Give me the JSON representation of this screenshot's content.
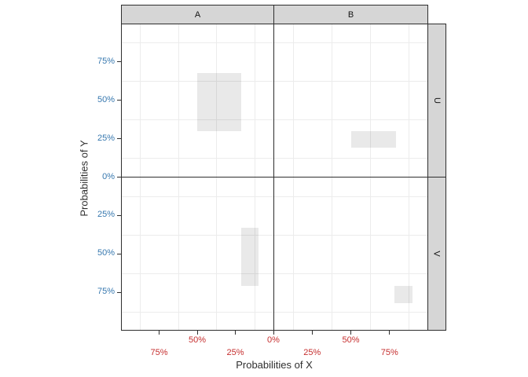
{
  "figure": {
    "facet_columns": [
      "A",
      "B"
    ],
    "facet_rows": [
      "U",
      "V"
    ],
    "x_axis_title": "Probabilities of X",
    "y_axis_title": "Probabilities of Y"
  },
  "style": {
    "x_tick_label_color": "#c62f2f",
    "y_tick_label_color": "#3778af",
    "strip_fill": "#d6d6d6",
    "grid_color": "#ececec",
    "rect_fill": "rgba(0,0,0,0.088)",
    "tick_color": "#2e2e2e"
  },
  "chart_data": {
    "type": "mosaic",
    "title": "",
    "xlabel": "Probabilities of X",
    "ylabel": "Probabilities of Y",
    "facet_cols": [
      "A",
      "B"
    ],
    "facet_rows": [
      "U",
      "V"
    ],
    "x_axis": {
      "range_pct": [
        0,
        100
      ],
      "mirrored_from_center": true,
      "label_color": "#c62f2f",
      "ticks": [
        {
          "label": "75%",
          "panel": "A",
          "value": 75,
          "row": 2
        },
        {
          "label": "50%",
          "panel": "A",
          "value": 50,
          "row": 1
        },
        {
          "label": "25%",
          "panel": "A",
          "value": 25,
          "row": 2
        },
        {
          "label": "0%",
          "panel": "center",
          "value": 0,
          "row": 1
        },
        {
          "label": "25%",
          "panel": "B",
          "value": 25,
          "row": 2
        },
        {
          "label": "50%",
          "panel": "B",
          "value": 50,
          "row": 1
        },
        {
          "label": "75%",
          "panel": "B",
          "value": 75,
          "row": 2
        }
      ]
    },
    "y_axis": {
      "range_pct": [
        0,
        100
      ],
      "mirrored_from_center": true,
      "label_color": "#3778af",
      "ticks": [
        {
          "label": "75%",
          "panel": "U",
          "value": 75
        },
        {
          "label": "50%",
          "panel": "U",
          "value": 50
        },
        {
          "label": "25%",
          "panel": "U",
          "value": 25
        },
        {
          "label": "0%",
          "panel": "center",
          "value": 0
        },
        {
          "label": "25%",
          "panel": "V",
          "value": 25
        },
        {
          "label": "50%",
          "panel": "V",
          "value": 50
        },
        {
          "label": "75%",
          "panel": "V",
          "value": 75
        }
      ]
    },
    "gridline_positions_pct": [
      12.5,
      37.5,
      62.5,
      87.5
    ],
    "grid_on": true,
    "legend": "none",
    "rects": [
      {
        "facet_col": "A",
        "facet_row": "U",
        "x_pct": [
          21,
          50
        ],
        "y_pct": [
          30,
          68
        ]
      },
      {
        "facet_col": "B",
        "facet_row": "U",
        "x_pct": [
          50,
          79
        ],
        "y_pct": [
          19,
          30
        ]
      },
      {
        "facet_col": "A",
        "facet_row": "V",
        "x_pct": [
          10,
          21
        ],
        "y_pct": [
          33,
          71
        ]
      },
      {
        "facet_col": "B",
        "facet_row": "V",
        "x_pct": [
          78,
          90
        ],
        "y_pct": [
          71,
          82
        ]
      }
    ]
  }
}
